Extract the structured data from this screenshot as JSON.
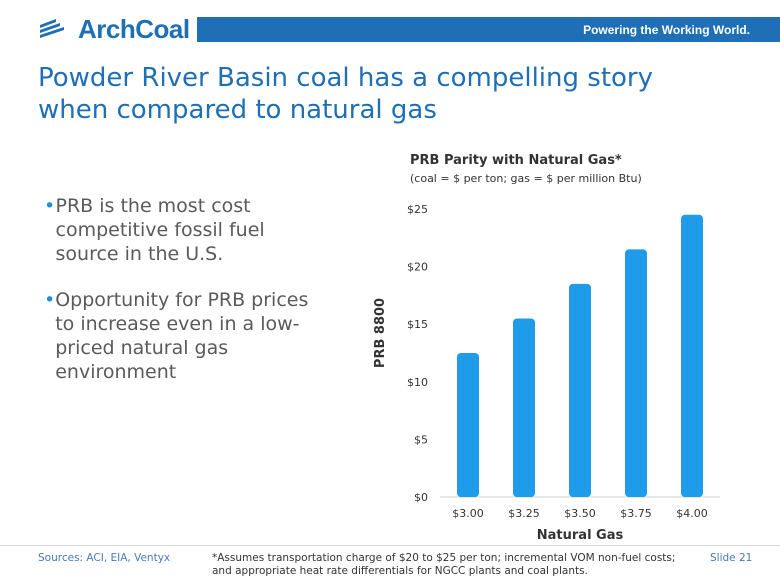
{
  "header": {
    "logo_text": "ArchCoal",
    "tagline": "Powering the Working World.",
    "brand_color": "#1e6fb5"
  },
  "title": {
    "line1": "Powder River Basin coal has a compelling story",
    "line2": "when compared to natural gas"
  },
  "bullets": [
    {
      "text": "PRB is the most cost competitive fossil fuel source in the U.S."
    },
    {
      "text": "Opportunity for PRB prices to increase even in a low-priced natural gas environment"
    }
  ],
  "chart_data": {
    "type": "bar",
    "title": "PRB Parity with Natural Gas*",
    "subtitle": "(coal = $ per ton; gas = $ per million Btu)",
    "categories": [
      "$3.00",
      "$3.25",
      "$3.50",
      "$3.75",
      "$4.00"
    ],
    "values": [
      12.5,
      15.5,
      18.5,
      21.5,
      24.5
    ],
    "xlabel": "Natural Gas",
    "ylabel": "PRB 8800",
    "ylim": [
      0,
      25
    ],
    "yticks": [
      0,
      5,
      10,
      15,
      20,
      25
    ],
    "ytick_labels": [
      "$0",
      "$5",
      "$10",
      "$15",
      "$20",
      "$25"
    ],
    "bar_color": "#1e9be9",
    "grid": false
  },
  "footer": {
    "sources": "Sources: ACI, EIA, Ventyx",
    "footnote": "*Assumes transportation charge of $20 to $25 per ton; incremental VOM non-fuel costs; and appropriate heat rate differentials for NGCC plants and coal plants.",
    "slide": "Slide 21"
  }
}
